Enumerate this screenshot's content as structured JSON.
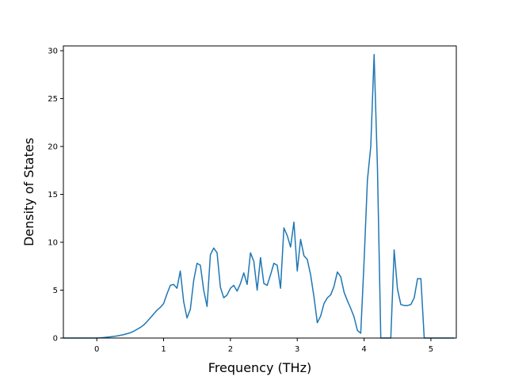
{
  "chart_data": {
    "type": "line",
    "title": "",
    "xlabel": "Frequency (THz)",
    "ylabel": "Density of States",
    "xlim": [
      -0.5,
      5.38
    ],
    "ylim": [
      0,
      30.5
    ],
    "xticks": [
      0,
      1,
      2,
      3,
      4,
      5
    ],
    "yticks": [
      0,
      5,
      10,
      15,
      20,
      25,
      30
    ],
    "grid": false,
    "series_color": "#1f77b4",
    "series": [
      {
        "x": [
          -0.5,
          -0.4,
          -0.3,
          -0.2,
          -0.1,
          0.0,
          0.1,
          0.2,
          0.3,
          0.4,
          0.5,
          0.55,
          0.6,
          0.65,
          0.7,
          0.75,
          0.8,
          0.85,
          0.9,
          0.95,
          1.0,
          1.05,
          1.1,
          1.15,
          1.2,
          1.25,
          1.3,
          1.35,
          1.4,
          1.45,
          1.5,
          1.55,
          1.6,
          1.65,
          1.7,
          1.75,
          1.8,
          1.85,
          1.9,
          1.95,
          2.0,
          2.05,
          2.1,
          2.15,
          2.2,
          2.25,
          2.3,
          2.35,
          2.4,
          2.45,
          2.5,
          2.55,
          2.6,
          2.65,
          2.7,
          2.75,
          2.8,
          2.85,
          2.9,
          2.95,
          3.0,
          3.05,
          3.1,
          3.15,
          3.2,
          3.25,
          3.3,
          3.35,
          3.4,
          3.45,
          3.5,
          3.55,
          3.6,
          3.65,
          3.7,
          3.75,
          3.8,
          3.85,
          3.9,
          3.95,
          4.0,
          4.05,
          4.1,
          4.15,
          4.2,
          4.25,
          4.3,
          4.35,
          4.4,
          4.45,
          4.5,
          4.55,
          4.6,
          4.65,
          4.7,
          4.75,
          4.8,
          4.85,
          4.9,
          4.95,
          5.0,
          5.1,
          5.2,
          5.35
        ],
        "y": [
          0,
          0,
          0,
          0,
          0,
          0,
          0.05,
          0.12,
          0.22,
          0.35,
          0.55,
          0.7,
          0.9,
          1.1,
          1.35,
          1.7,
          2.1,
          2.5,
          2.9,
          3.2,
          3.6,
          4.6,
          5.5,
          5.6,
          5.2,
          7.0,
          3.8,
          2.1,
          3.0,
          6.0,
          7.8,
          7.6,
          5.0,
          3.3,
          8.7,
          9.4,
          8.9,
          5.3,
          4.2,
          4.5,
          5.2,
          5.5,
          4.9,
          5.7,
          6.8,
          5.6,
          8.9,
          8.0,
          5.0,
          8.4,
          5.7,
          5.5,
          6.6,
          7.8,
          7.6,
          5.2,
          11.5,
          10.7,
          9.5,
          12.1,
          7.0,
          10.3,
          8.6,
          8.2,
          6.6,
          4.3,
          1.6,
          2.3,
          3.6,
          4.2,
          4.5,
          5.4,
          6.9,
          6.4,
          4.8,
          3.9,
          3.1,
          2.2,
          0.8,
          0.5,
          8.0,
          16.5,
          20.0,
          29.6,
          17.8,
          0,
          0,
          0,
          0,
          9.2,
          5.1,
          3.5,
          3.4,
          3.4,
          3.5,
          4.2,
          6.2,
          6.2,
          0,
          0,
          0,
          0,
          0,
          0
        ]
      }
    ]
  }
}
